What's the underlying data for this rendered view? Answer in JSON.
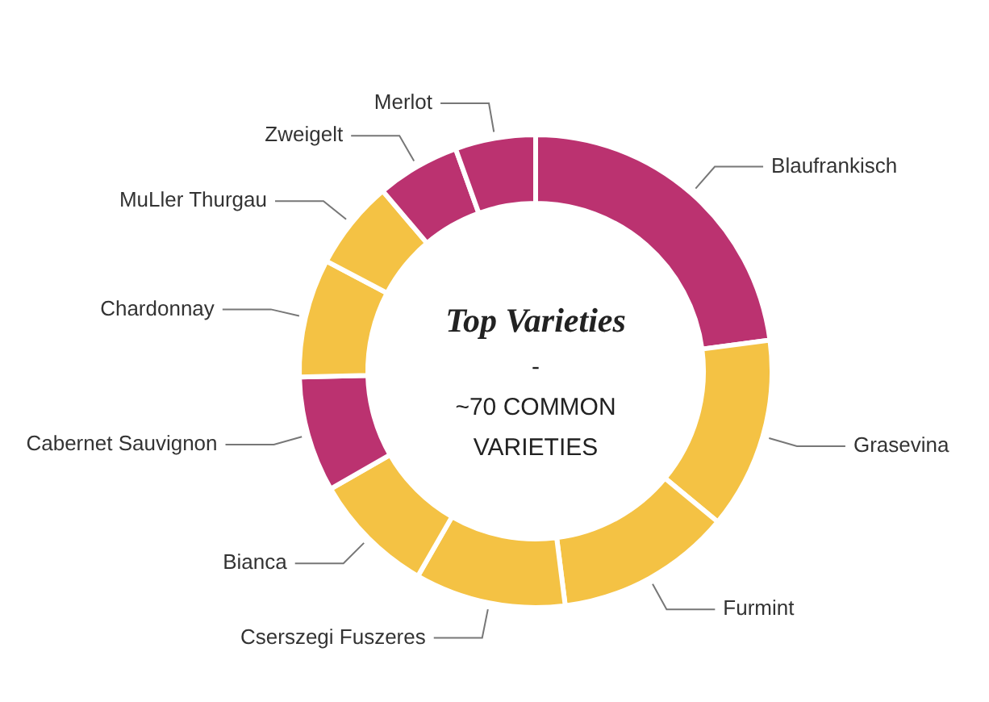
{
  "chart_data": {
    "type": "donut",
    "title": "Top Varieties",
    "subtitle": "- ~70 COMMON VARIETIES",
    "categories": [
      "Blaufrankisch",
      "Grasevina",
      "Furmint",
      "Cserszegi Fuszeres",
      "Bianca",
      "Cabernet Sauvignon",
      "Chardonnay",
      "MuLler Thurgau",
      "Zweigelt",
      "Merlot"
    ],
    "values": [
      22.9,
      13.1,
      12,
      10.3,
      8.4,
      7.9,
      8.1,
      6.1,
      5.7,
      5.5
    ],
    "colors": [
      "#bb3270",
      "#f4c244",
      "#f4c244",
      "#f4c244",
      "#f4c244",
      "#bb3270",
      "#f4c244",
      "#f4c244",
      "#bb3270",
      "#bb3270"
    ],
    "legend": false
  }
}
